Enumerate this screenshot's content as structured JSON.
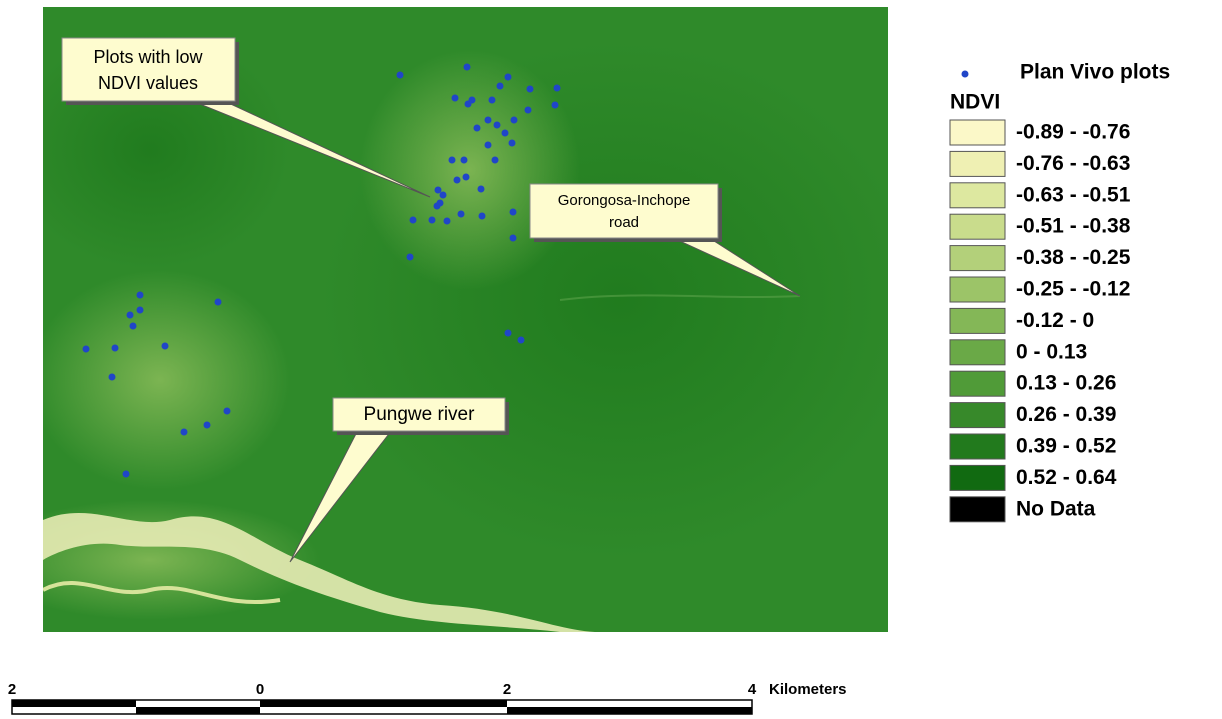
{
  "callouts": {
    "low_ndvi": {
      "lines": [
        "Plots with low",
        "NDVI values"
      ]
    },
    "road": {
      "lines": [
        "Gorongosa-Inchope",
        "road"
      ]
    },
    "river": {
      "lines": [
        "Pungwe river"
      ]
    }
  },
  "legend": {
    "points_label": "Plan Vivo plots",
    "title": "NDVI",
    "classes": [
      "-0.89 - -0.76",
      "-0.76 - -0.63",
      "-0.63 - -0.51",
      "-0.51 - -0.38",
      "-0.38 - -0.25",
      "-0.25 - -0.12",
      "-0.12 - 0",
      "0 - 0.13",
      "0.13 - 0.26",
      "0.26 - 0.39",
      "0.39 - 0.52",
      "0.52 - 0.64",
      "No Data"
    ]
  },
  "scale_bar": {
    "labels": [
      "2",
      "0",
      "2",
      "4"
    ],
    "unit": "Kilometers"
  }
}
